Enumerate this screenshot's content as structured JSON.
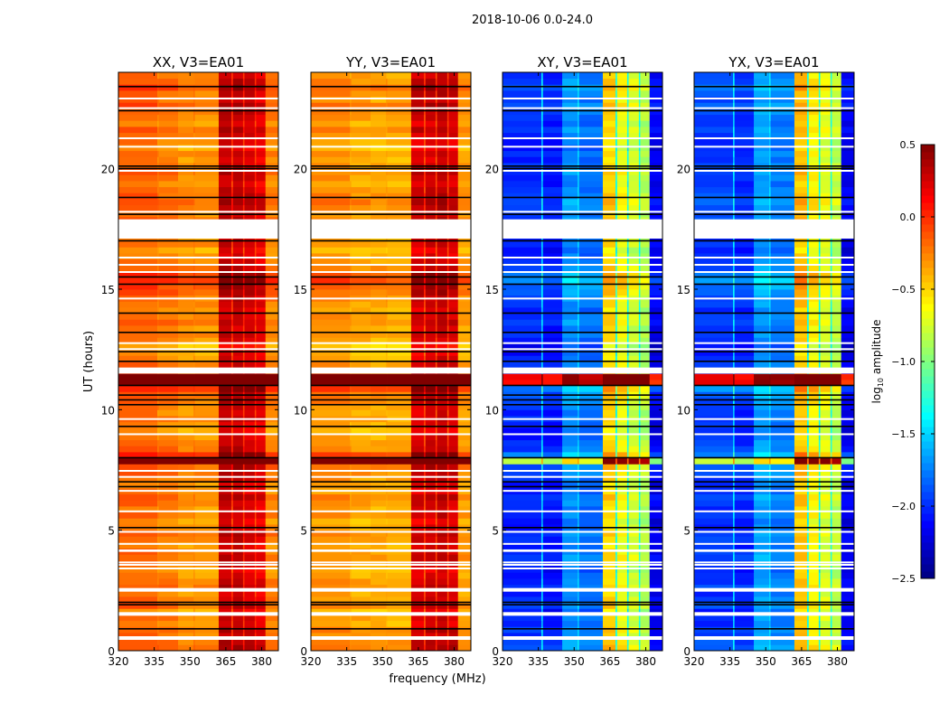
{
  "figure": {
    "suptitle": "2018-10-06 0.0-24.0",
    "ylabel": "UT (hours)",
    "xlabel": "frequency (MHz)"
  },
  "chart_data": {
    "type": "heatmap",
    "title": "2018-10-06 0.0-24.0",
    "xlabel": "frequency (MHz)",
    "ylabel": "UT (hours)",
    "xlim": [
      320,
      387
    ],
    "ylim": [
      0,
      24
    ],
    "xticks": [
      320,
      335,
      350,
      365,
      380
    ],
    "yticks": [
      0,
      5,
      10,
      15,
      20
    ],
    "colormap": "jet",
    "colorbar": {
      "label_main": "log",
      "label_sub": "10",
      "label_rest": " amplitude",
      "vmin": -2.5,
      "vmax": 0.5,
      "ticks": [
        "0.5",
        "0.0",
        "−0.5",
        "−1.0",
        "−1.5",
        "−2.0",
        "−2.5"
      ],
      "tick_values": [
        0.5,
        0.0,
        -0.5,
        -1.0,
        -1.5,
        -2.0,
        -2.5
      ]
    },
    "freq_bin_edges_mhz": [
      320,
      336.3,
      336.9,
      345,
      351.5,
      352,
      362,
      367.3,
      368,
      372.2,
      372.8,
      377.1,
      377.7,
      381.6,
      387
    ],
    "time_bin_hours": 0.25,
    "panels": [
      {
        "title": "XX, V3=EA01",
        "channel_log_amp": [
          -0.22,
          -0.3,
          -0.28,
          -0.35,
          -0.3,
          -0.35,
          0.25,
          -0.05,
          0.25,
          -0.05,
          0.2,
          -0.05,
          0.15,
          -0.3
        ]
      },
      {
        "title": "YY, V3=EA01",
        "channel_log_amp": [
          -0.35,
          -0.4,
          -0.4,
          -0.42,
          -0.4,
          -0.42,
          0.2,
          -0.1,
          0.22,
          -0.1,
          0.25,
          -0.1,
          0.2,
          -0.38
        ]
      },
      {
        "title": "XY, V3=EA01",
        "channel_log_amp": [
          -2.05,
          -1.5,
          -2.1,
          -1.75,
          -1.5,
          -1.85,
          -0.55,
          -1.35,
          -0.7,
          -1.4,
          -0.8,
          -1.35,
          -0.9,
          -2.2
        ]
      },
      {
        "title": "YX, V3=EA01",
        "channel_log_amp": [
          -2.0,
          -1.5,
          -2.05,
          -1.7,
          -1.5,
          -1.8,
          -0.5,
          -1.35,
          -0.65,
          -1.4,
          -0.75,
          -1.35,
          -0.85,
          -2.2
        ]
      }
    ],
    "time_row_offset": [
      0.15,
      0.1,
      0.05,
      0.1,
      0.0,
      0.05,
      -0.05,
      0.1,
      0.05,
      0.0,
      0.1,
      0.05,
      0.0,
      -0.05,
      0.05,
      0.1,
      0.05,
      0.0,
      0.05,
      0.1,
      0.0,
      -0.05,
      0.05,
      0.0,
      0.05,
      0.1,
      0.0,
      0.0,
      0.05,
      0.1,
      0.15,
      1.2,
      0.3,
      0.1,
      0.05,
      0.0,
      -0.05,
      0.0,
      0.05,
      0.0,
      0.05,
      0.1,
      0.15,
      0.3,
      2.2,
      2.2,
      0.1,
      0.05,
      0.0,
      -0.05,
      -0.1,
      0.0,
      0.05,
      0.0,
      0.1,
      0.05,
      0.0,
      0.05,
      0.1,
      0.15,
      0.2,
      0.3,
      0.25,
      0.1,
      0.05,
      0.0,
      -0.05,
      0.05,
      0.0,
      0.0,
      0.05,
      0.1,
      0.05,
      0.1,
      0.15,
      0.1,
      0.05,
      0.0,
      0.05,
      0.1,
      0.05,
      0.0,
      0.05,
      -0.05,
      0.0,
      0.05,
      0.1,
      0.0,
      0.05,
      0.1,
      0.15,
      0.05,
      0.1,
      0.2,
      0.1,
      0.05
    ],
    "no_data_hours": [
      [
        0.45,
        0.6
      ],
      [
        1.45,
        1.6
      ],
      [
        2.45,
        2.6
      ],
      [
        3.4,
        3.45
      ],
      [
        3.55,
        3.6
      ],
      [
        3.65,
        3.7
      ],
      [
        4.1,
        4.2
      ],
      [
        4.4,
        4.47
      ],
      [
        4.9,
        4.97
      ],
      [
        5.75,
        5.82
      ],
      [
        6.6,
        6.67
      ],
      [
        7.2,
        7.25
      ],
      [
        7.45,
        7.5
      ],
      [
        8.95,
        9.02
      ],
      [
        9.6,
        9.65
      ],
      [
        11.5,
        11.75
      ],
      [
        12.5,
        12.55
      ],
      [
        12.75,
        12.8
      ],
      [
        14.6,
        14.65
      ],
      [
        15.7,
        15.75
      ],
      [
        16.0,
        16.05
      ],
      [
        16.3,
        16.35
      ],
      [
        17.1,
        17.9
      ],
      [
        18.2,
        18.25
      ],
      [
        19.9,
        19.95
      ],
      [
        20.9,
        20.95
      ],
      [
        21.25,
        21.3
      ],
      [
        22.5,
        22.55
      ],
      [
        22.9,
        22.95
      ]
    ],
    "flagged_hours": [
      0.9,
      1.9,
      2.0,
      5.1,
      6.8,
      7.0,
      8.0,
      9.3,
      10.2,
      10.4,
      10.6,
      11.0,
      12.0,
      12.4,
      13.2,
      14.0,
      15.2,
      15.5,
      17.0,
      18.1,
      18.8,
      20.0,
      20.1,
      22.4,
      23.4
    ]
  }
}
